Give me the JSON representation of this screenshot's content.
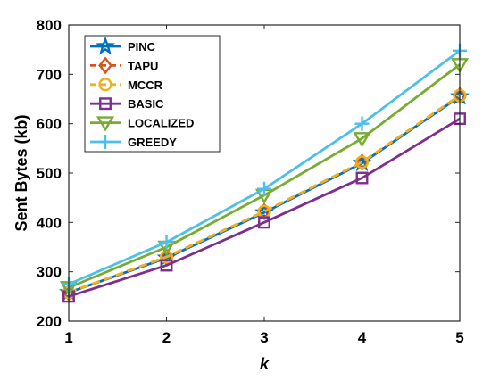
{
  "chart_data": {
    "type": "line",
    "x": [
      1,
      2,
      3,
      4,
      5
    ],
    "xticks": [
      "1",
      "2",
      "3",
      "4",
      "5"
    ],
    "yticks": [
      "200",
      "300",
      "400",
      "500",
      "600",
      "700",
      "800"
    ],
    "xlabel": "k",
    "ylabel": "Sent Bytes (kb)",
    "xlim": [
      1,
      5
    ],
    "ylim": [
      200,
      800
    ],
    "grid": false,
    "legend": "top-left",
    "series": [
      {
        "name": "PINC",
        "values": [
          258,
          328,
          420,
          520,
          655
        ],
        "color": "#0072BD",
        "marker": "star",
        "dash": "solid"
      },
      {
        "name": "TAPU",
        "values": [
          258,
          330,
          422,
          522,
          657
        ],
        "color": "#D95319",
        "marker": "diamond",
        "dash": "dashed"
      },
      {
        "name": "MCCR",
        "values": [
          258,
          330,
          422,
          522,
          657
        ],
        "color": "#EDB120",
        "marker": "circle",
        "dash": "dashed"
      },
      {
        "name": "BASIC",
        "values": [
          250,
          313,
          400,
          490,
          610
        ],
        "color": "#7E2F8E",
        "marker": "square",
        "dash": "solid"
      },
      {
        "name": "LOCALIZED",
        "values": [
          268,
          350,
          455,
          570,
          720
        ],
        "color": "#77AC30",
        "marker": "triangle-down",
        "dash": "solid"
      },
      {
        "name": "GREEDY",
        "values": [
          275,
          360,
          468,
          600,
          748
        ],
        "color": "#4DBEEE",
        "marker": "plus",
        "dash": "solid"
      }
    ]
  }
}
